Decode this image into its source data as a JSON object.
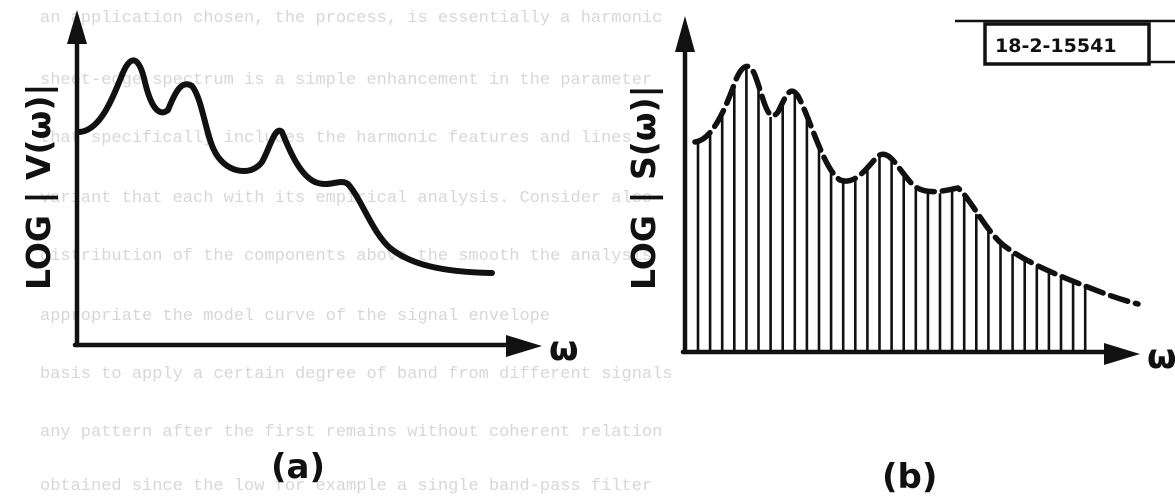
{
  "figure_number": "18-2-15541",
  "panel_a": {
    "ylabel": "LOG | V(ω)|",
    "xlabel": "ω",
    "caption": "(a)"
  },
  "panel_b": {
    "ylabel": "LOG | S(ω)|",
    "xlabel": "ω",
    "caption": "(b)"
  }
}
